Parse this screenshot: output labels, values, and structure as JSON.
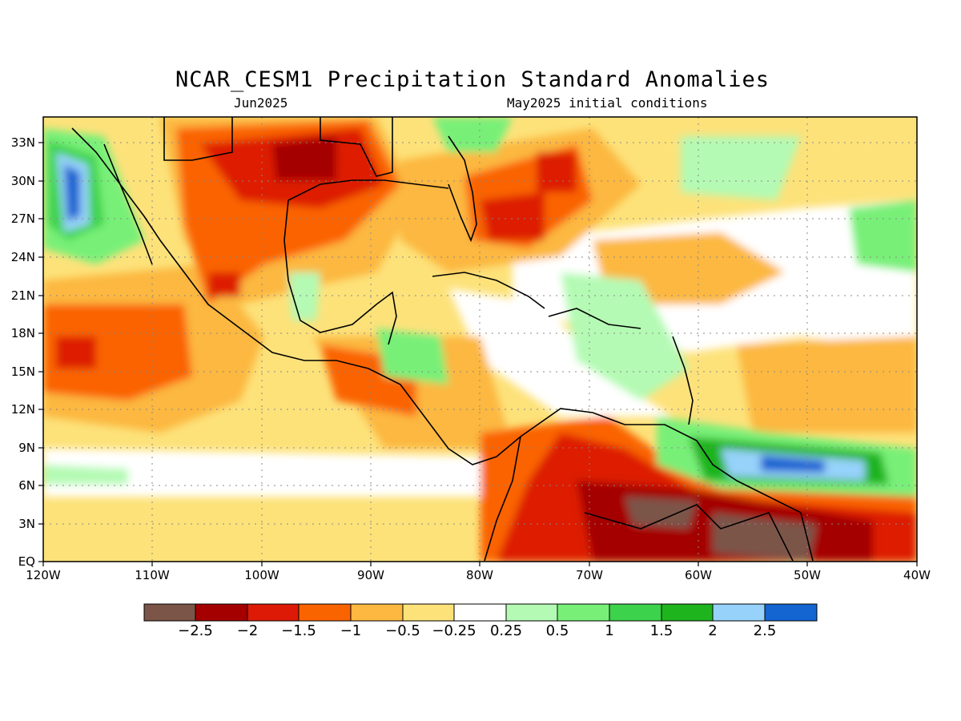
{
  "title": "NCAR_CESM1 Precipitation Standard Anomalies",
  "subtitle_left": "Jun2025",
  "subtitle_right": "May2025 initial conditions",
  "map": {
    "lat_labels": [
      "33N",
      "30N",
      "27N",
      "24N",
      "21N",
      "18N",
      "15N",
      "12N",
      "9N",
      "6N",
      "3N",
      "EQ"
    ],
    "lon_labels": [
      "120W",
      "110W",
      "100W",
      "90W",
      "80W",
      "70W",
      "60W",
      "50W",
      "40W"
    ],
    "grid": "dotted"
  },
  "colorbar": {
    "labels": [
      "−2.5",
      "−2",
      "−1.5",
      "−1",
      "−0.5",
      "−0.25",
      "0.25",
      "0.5",
      "1",
      "1.5",
      "2",
      "2.5"
    ],
    "colors": [
      "#7b5548",
      "#a40000",
      "#dd1a05",
      "#fa6400",
      "#fcb840",
      "#fde27a",
      "#ffffff",
      "#b4fab4",
      "#78f078",
      "#3cd24b",
      "#1eb41e",
      "#96d2fa",
      "#1464d2"
    ]
  }
}
